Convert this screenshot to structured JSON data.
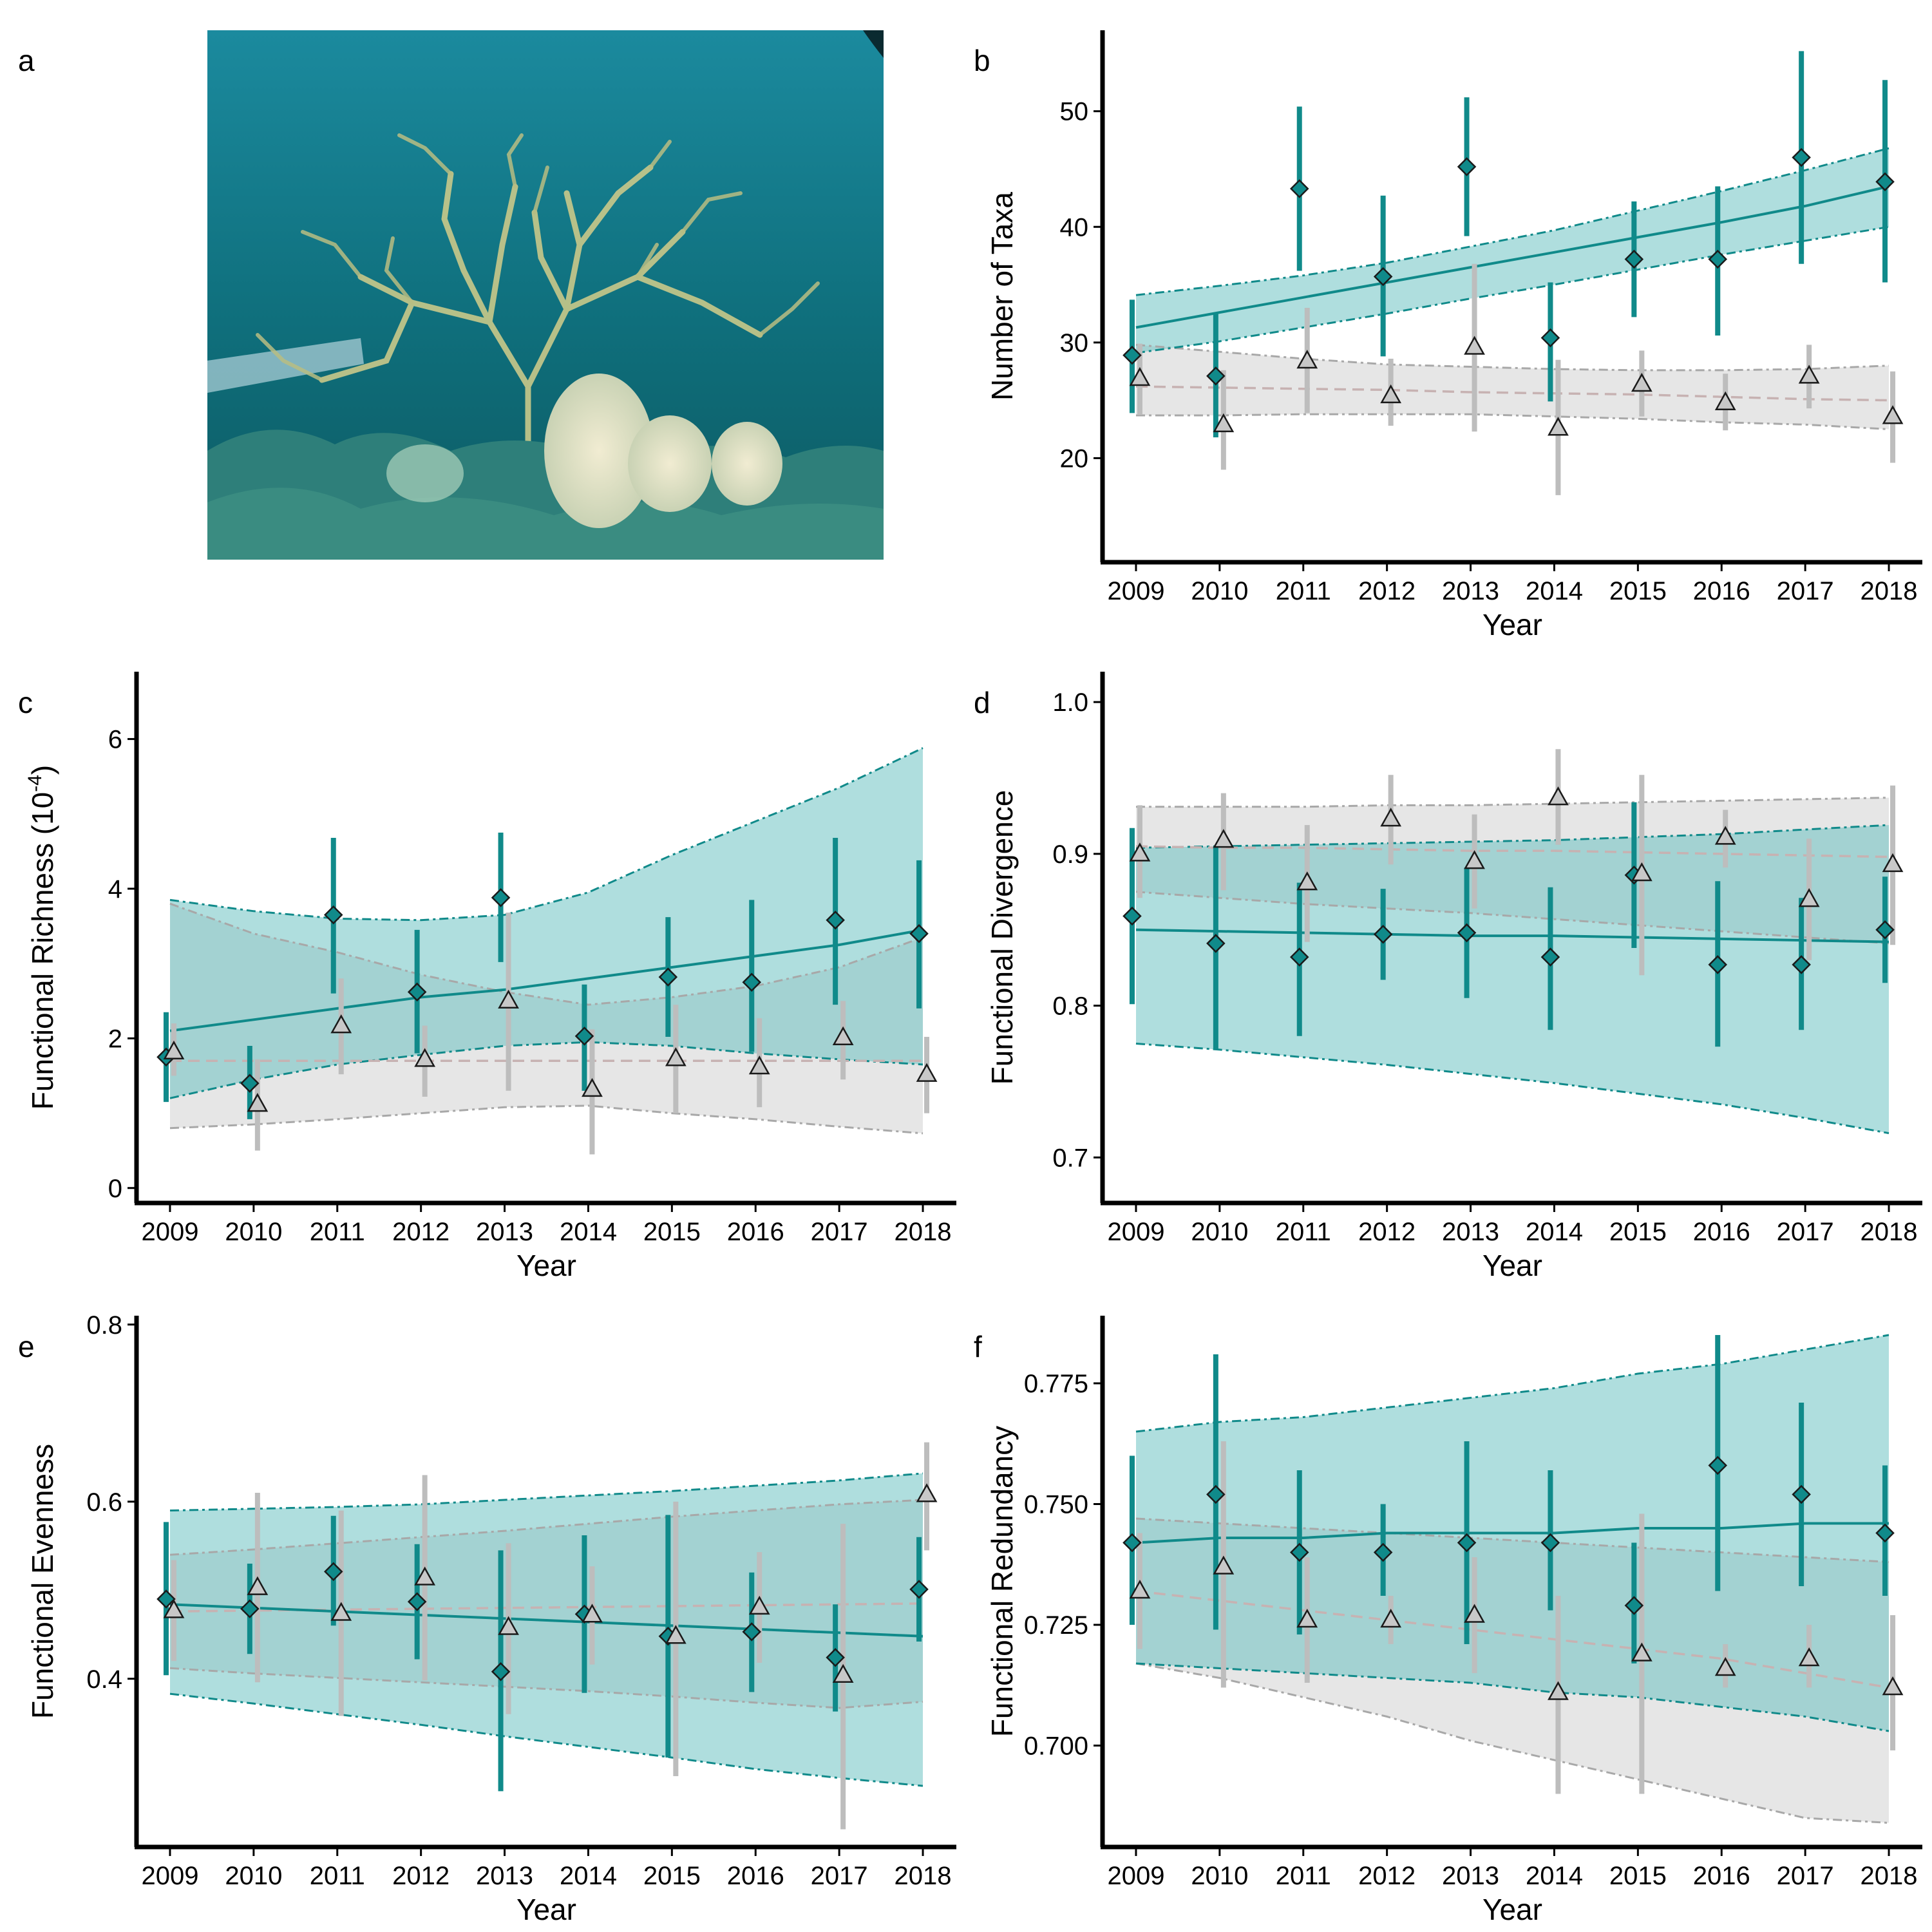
{
  "figure": {
    "panel_a": {
      "letter": "a"
    },
    "colors": {
      "teal": "#108a8a",
      "teal_band": "#5fbdbd",
      "grey": "#bdbdbd",
      "grey_band": "#d9d9d9",
      "grey_line": "#c7b2b2"
    }
  },
  "chart_data": [
    {
      "panel": "b",
      "type": "scatter",
      "title": "",
      "xlabel": "Year",
      "ylabel": "Number of Taxa",
      "ylabel_sup": "",
      "ylabel_tail": "",
      "xlim": [
        2008.6,
        2018.4
      ],
      "ylim": [
        11,
        57
      ],
      "yticks": [
        20,
        30,
        40,
        50
      ],
      "x": [
        2009,
        2010,
        2011,
        2012,
        2013,
        2014,
        2015,
        2016,
        2017,
        2018
      ],
      "series": [
        {
          "marker": "diamond",
          "values": [
            28.9,
            27.1,
            43.3,
            35.7,
            45.2,
            30.4,
            37.2,
            37.2,
            46.0,
            43.9
          ],
          "err_low": [
            23.9,
            21.8,
            36.2,
            28.8,
            39.2,
            24.9,
            32.2,
            30.6,
            36.8,
            35.2
          ],
          "err_high": [
            33.7,
            32.5,
            50.4,
            42.7,
            51.2,
            35.2,
            42.2,
            43.5,
            55.2,
            52.7
          ],
          "fit": [
            31.3,
            32.6,
            33.9,
            35.2,
            36.5,
            37.8,
            39.1,
            40.4,
            41.8,
            43.5
          ],
          "band_low": [
            29.1,
            30.1,
            31.3,
            32.5,
            33.8,
            35.0,
            36.3,
            37.6,
            38.8,
            40.0
          ],
          "band_high": [
            34.1,
            34.9,
            35.8,
            36.9,
            38.3,
            39.7,
            41.4,
            43.1,
            44.9,
            46.8
          ]
        },
        {
          "marker": "triangle",
          "values": [
            26.9,
            22.9,
            28.4,
            25.4,
            29.6,
            22.6,
            26.4,
            24.8,
            27.1,
            23.6
          ],
          "err_low": [
            23.8,
            19.0,
            23.9,
            22.8,
            22.3,
            16.8,
            23.6,
            22.4,
            24.3,
            19.6
          ],
          "err_high": [
            29.9,
            27.6,
            33.0,
            28.6,
            36.8,
            28.5,
            29.3,
            27.3,
            29.8,
            27.5
          ],
          "fit": [
            26.2,
            26.1,
            26.0,
            25.9,
            25.7,
            25.6,
            25.5,
            25.3,
            25.1,
            25.0
          ],
          "band_low": [
            23.7,
            23.7,
            23.8,
            23.8,
            23.8,
            23.6,
            23.4,
            23.1,
            22.9,
            22.5
          ],
          "band_high": [
            29.8,
            29.2,
            28.6,
            28.1,
            27.9,
            27.7,
            27.6,
            27.6,
            27.7,
            28.0
          ]
        }
      ]
    },
    {
      "panel": "c",
      "type": "scatter",
      "title": "",
      "xlabel": "Year",
      "ylabel": "Functional Richness (10",
      "ylabel_sup": "-4",
      "ylabel_tail": ")",
      "xlim": [
        2008.6,
        2018.4
      ],
      "ylim": [
        -0.2,
        6.9
      ],
      "yticks": [
        0,
        2,
        4,
        6
      ],
      "x": [
        2009,
        2010,
        2011,
        2012,
        2013,
        2014,
        2015,
        2016,
        2017,
        2018
      ],
      "series": [
        {
          "marker": "diamond",
          "values": [
            1.75,
            1.4,
            3.65,
            2.62,
            3.88,
            2.03,
            2.82,
            2.75,
            3.58,
            3.4
          ],
          "err_low": [
            1.15,
            0.92,
            2.6,
            1.8,
            3.02,
            1.3,
            2.02,
            1.82,
            2.45,
            2.4
          ],
          "err_high": [
            2.35,
            1.9,
            4.68,
            3.45,
            4.75,
            2.72,
            3.62,
            3.85,
            4.68,
            4.38
          ],
          "fit": [
            2.1,
            2.25,
            2.4,
            2.55,
            2.65,
            2.8,
            2.95,
            3.1,
            3.25,
            3.45
          ],
          "band_low": [
            1.2,
            1.45,
            1.65,
            1.78,
            1.9,
            1.95,
            1.9,
            1.8,
            1.72,
            1.65
          ],
          "band_high": [
            3.85,
            3.7,
            3.6,
            3.58,
            3.65,
            3.95,
            4.45,
            4.9,
            5.35,
            5.88
          ]
        },
        {
          "marker": "triangle",
          "values": [
            1.82,
            1.12,
            2.17,
            1.72,
            2.5,
            1.32,
            1.73,
            1.62,
            2.01,
            1.52
          ],
          "err_low": [
            1.5,
            0.5,
            1.52,
            1.22,
            1.3,
            0.45,
            1.0,
            1.08,
            1.45,
            1.0
          ],
          "err_high": [
            2.2,
            1.72,
            2.8,
            2.17,
            3.68,
            2.12,
            2.45,
            2.27,
            2.5,
            2.02
          ],
          "fit": [
            1.7,
            1.7,
            1.7,
            1.7,
            1.7,
            1.7,
            1.7,
            1.7,
            1.7,
            1.7
          ],
          "band_low": [
            0.8,
            0.85,
            0.92,
            1.0,
            1.08,
            1.1,
            1.0,
            0.92,
            0.82,
            0.73
          ],
          "band_high": [
            3.8,
            3.4,
            3.15,
            2.85,
            2.62,
            2.45,
            2.55,
            2.7,
            2.95,
            3.35
          ]
        }
      ]
    },
    {
      "panel": "d",
      "type": "scatter",
      "title": "",
      "xlabel": "Year",
      "ylabel": "Functional Divergence",
      "ylabel_sup": "",
      "ylabel_tail": "",
      "xlim": [
        2008.6,
        2018.4
      ],
      "ylim": [
        0.67,
        1.02
      ],
      "yticks": [
        0.7,
        0.8,
        0.9,
        1.0
      ],
      "ytick_labels": [
        "0.7",
        "0.8",
        "0.9",
        "1.0"
      ],
      "x": [
        2009,
        2010,
        2011,
        2012,
        2013,
        2014,
        2015,
        2016,
        2017,
        2018
      ],
      "series": [
        {
          "marker": "diamond",
          "values": [
            0.859,
            0.841,
            0.832,
            0.847,
            0.848,
            0.832,
            0.886,
            0.827,
            0.827,
            0.85
          ],
          "err_low": [
            0.801,
            0.771,
            0.78,
            0.817,
            0.805,
            0.784,
            0.838,
            0.773,
            0.784,
            0.815
          ],
          "err_high": [
            0.917,
            0.905,
            0.881,
            0.877,
            0.891,
            0.878,
            0.934,
            0.882,
            0.871,
            0.885
          ],
          "fit": [
            0.85,
            0.849,
            0.848,
            0.847,
            0.846,
            0.846,
            0.845,
            0.844,
            0.843,
            0.842
          ],
          "band_low": [
            0.775,
            0.771,
            0.766,
            0.761,
            0.755,
            0.749,
            0.742,
            0.735,
            0.726,
            0.716
          ],
          "band_high": [
            0.904,
            0.905,
            0.906,
            0.907,
            0.908,
            0.909,
            0.911,
            0.913,
            0.916,
            0.919
          ]
        },
        {
          "marker": "triangle",
          "values": [
            0.9,
            0.909,
            0.881,
            0.923,
            0.895,
            0.937,
            0.887,
            0.911,
            0.87,
            0.893
          ],
          "err_low": [
            0.871,
            0.876,
            0.842,
            0.893,
            0.864,
            0.906,
            0.82,
            0.891,
            0.83,
            0.84
          ],
          "err_high": [
            0.932,
            0.94,
            0.919,
            0.952,
            0.926,
            0.969,
            0.952,
            0.929,
            0.91,
            0.945
          ],
          "fit": [
            0.905,
            0.904,
            0.904,
            0.903,
            0.902,
            0.902,
            0.901,
            0.9,
            0.899,
            0.898
          ],
          "band_low": [
            0.875,
            0.871,
            0.867,
            0.864,
            0.861,
            0.857,
            0.853,
            0.849,
            0.845,
            0.841
          ],
          "band_high": [
            0.931,
            0.931,
            0.931,
            0.932,
            0.932,
            0.933,
            0.934,
            0.935,
            0.936,
            0.937
          ]
        }
      ]
    },
    {
      "panel": "e",
      "type": "scatter",
      "title": "",
      "xlabel": "Year",
      "ylabel": "Functional Evenness",
      "ylabel_sup": "",
      "ylabel_tail": "",
      "xlim": [
        2008.6,
        2018.4
      ],
      "ylim": [
        0.21,
        0.81
      ],
      "yticks": [
        0.4,
        0.6,
        0.8
      ],
      "ytick_labels": [
        "0.4",
        "0.6",
        "0.8"
      ],
      "x": [
        2009,
        2010,
        2011,
        2012,
        2013,
        2014,
        2015,
        2016,
        2017,
        2018
      ],
      "series": [
        {
          "marker": "diamond",
          "values": [
            0.49,
            0.479,
            0.521,
            0.487,
            0.408,
            0.473,
            0.448,
            0.453,
            0.424,
            0.501
          ],
          "err_low": [
            0.404,
            0.428,
            0.46,
            0.422,
            0.273,
            0.384,
            0.311,
            0.385,
            0.363,
            0.442
          ],
          "err_high": [
            0.577,
            0.53,
            0.584,
            0.552,
            0.545,
            0.562,
            0.585,
            0.52,
            0.484,
            0.56
          ],
          "fit": [
            0.484,
            0.48,
            0.476,
            0.472,
            0.468,
            0.464,
            0.46,
            0.456,
            0.452,
            0.448
          ],
          "band_low": [
            0.383,
            0.372,
            0.36,
            0.348,
            0.335,
            0.323,
            0.311,
            0.298,
            0.288,
            0.279
          ],
          "band_high": [
            0.59,
            0.592,
            0.594,
            0.597,
            0.602,
            0.607,
            0.612,
            0.618,
            0.624,
            0.632
          ]
        },
        {
          "marker": "triangle",
          "values": [
            0.477,
            0.503,
            0.474,
            0.514,
            0.458,
            0.472,
            0.448,
            0.481,
            0.404,
            0.608
          ],
          "err_low": [
            0.42,
            0.396,
            0.358,
            0.398,
            0.36,
            0.416,
            0.29,
            0.418,
            0.23,
            0.545
          ],
          "err_high": [
            0.534,
            0.61,
            0.59,
            0.63,
            0.553,
            0.527,
            0.6,
            0.543,
            0.575,
            0.667
          ],
          "fit": [
            0.476,
            0.477,
            0.478,
            0.479,
            0.48,
            0.481,
            0.482,
            0.483,
            0.484,
            0.485
          ],
          "band_low": [
            0.412,
            0.406,
            0.401,
            0.396,
            0.391,
            0.386,
            0.38,
            0.373,
            0.367,
            0.374
          ],
          "band_high": [
            0.54,
            0.546,
            0.553,
            0.56,
            0.567,
            0.575,
            0.583,
            0.59,
            0.597,
            0.602
          ]
        }
      ]
    },
    {
      "panel": "f",
      "type": "scatter",
      "title": "",
      "xlabel": "Year",
      "ylabel": "Functional Redundancy",
      "ylabel_sup": "",
      "ylabel_tail": "",
      "xlim": [
        2008.6,
        2018.4
      ],
      "ylim": [
        0.679,
        0.789
      ],
      "yticks": [
        0.7,
        0.725,
        0.75,
        0.775
      ],
      "ytick_labels": [
        "0.700",
        "0.725",
        "0.750",
        "0.775"
      ],
      "x": [
        2009,
        2010,
        2011,
        2012,
        2013,
        2014,
        2015,
        2016,
        2017,
        2018
      ],
      "series": [
        {
          "marker": "diamond",
          "values": [
            0.742,
            0.752,
            0.74,
            0.74,
            0.742,
            0.742,
            0.729,
            0.758,
            0.752,
            0.744
          ],
          "err_low": [
            0.725,
            0.724,
            0.723,
            0.731,
            0.721,
            0.728,
            0.717,
            0.732,
            0.733,
            0.731
          ],
          "err_high": [
            0.76,
            0.781,
            0.757,
            0.75,
            0.763,
            0.757,
            0.742,
            0.785,
            0.771,
            0.758
          ],
          "fit": [
            0.742,
            0.743,
            0.743,
            0.744,
            0.744,
            0.744,
            0.745,
            0.745,
            0.746,
            0.746
          ],
          "band_low": [
            0.717,
            0.716,
            0.715,
            0.714,
            0.713,
            0.711,
            0.71,
            0.708,
            0.706,
            0.703
          ],
          "band_high": [
            0.765,
            0.767,
            0.768,
            0.77,
            0.772,
            0.774,
            0.777,
            0.779,
            0.782,
            0.785
          ]
        },
        {
          "marker": "triangle",
          "values": [
            0.732,
            0.737,
            0.726,
            0.726,
            0.727,
            0.711,
            0.719,
            0.716,
            0.718,
            0.712
          ],
          "err_low": [
            0.72,
            0.712,
            0.713,
            0.721,
            0.715,
            0.69,
            0.69,
            0.712,
            0.712,
            0.699
          ],
          "err_high": [
            0.744,
            0.763,
            0.739,
            0.731,
            0.739,
            0.731,
            0.748,
            0.721,
            0.725,
            0.727
          ],
          "fit": [
            0.732,
            0.73,
            0.728,
            0.726,
            0.724,
            0.722,
            0.72,
            0.718,
            0.715,
            0.712
          ],
          "band_low": [
            0.717,
            0.714,
            0.71,
            0.706,
            0.701,
            0.697,
            0.693,
            0.689,
            0.685,
            0.684
          ],
          "band_high": [
            0.747,
            0.746,
            0.745,
            0.744,
            0.743,
            0.742,
            0.741,
            0.74,
            0.739,
            0.738
          ]
        }
      ]
    }
  ]
}
